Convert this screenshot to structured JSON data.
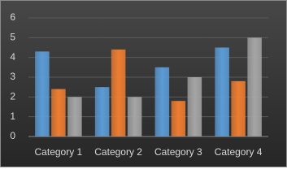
{
  "chart_data": {
    "type": "bar",
    "categories": [
      "Category 1",
      "Category 2",
      "Category 3",
      "Category 4"
    ],
    "series": [
      {
        "color": "#5b9bd5",
        "values": [
          4.3,
          2.5,
          3.5,
          4.5
        ]
      },
      {
        "color": "#ed7d31",
        "values": [
          2.4,
          4.4,
          1.8,
          2.8
        ]
      },
      {
        "color": "#a5a5a5",
        "values": [
          2,
          2,
          3,
          5
        ]
      }
    ],
    "ylim": [
      0,
      6
    ],
    "yticks": [
      0,
      1,
      2,
      3,
      4,
      5,
      6
    ],
    "grid": true
  }
}
